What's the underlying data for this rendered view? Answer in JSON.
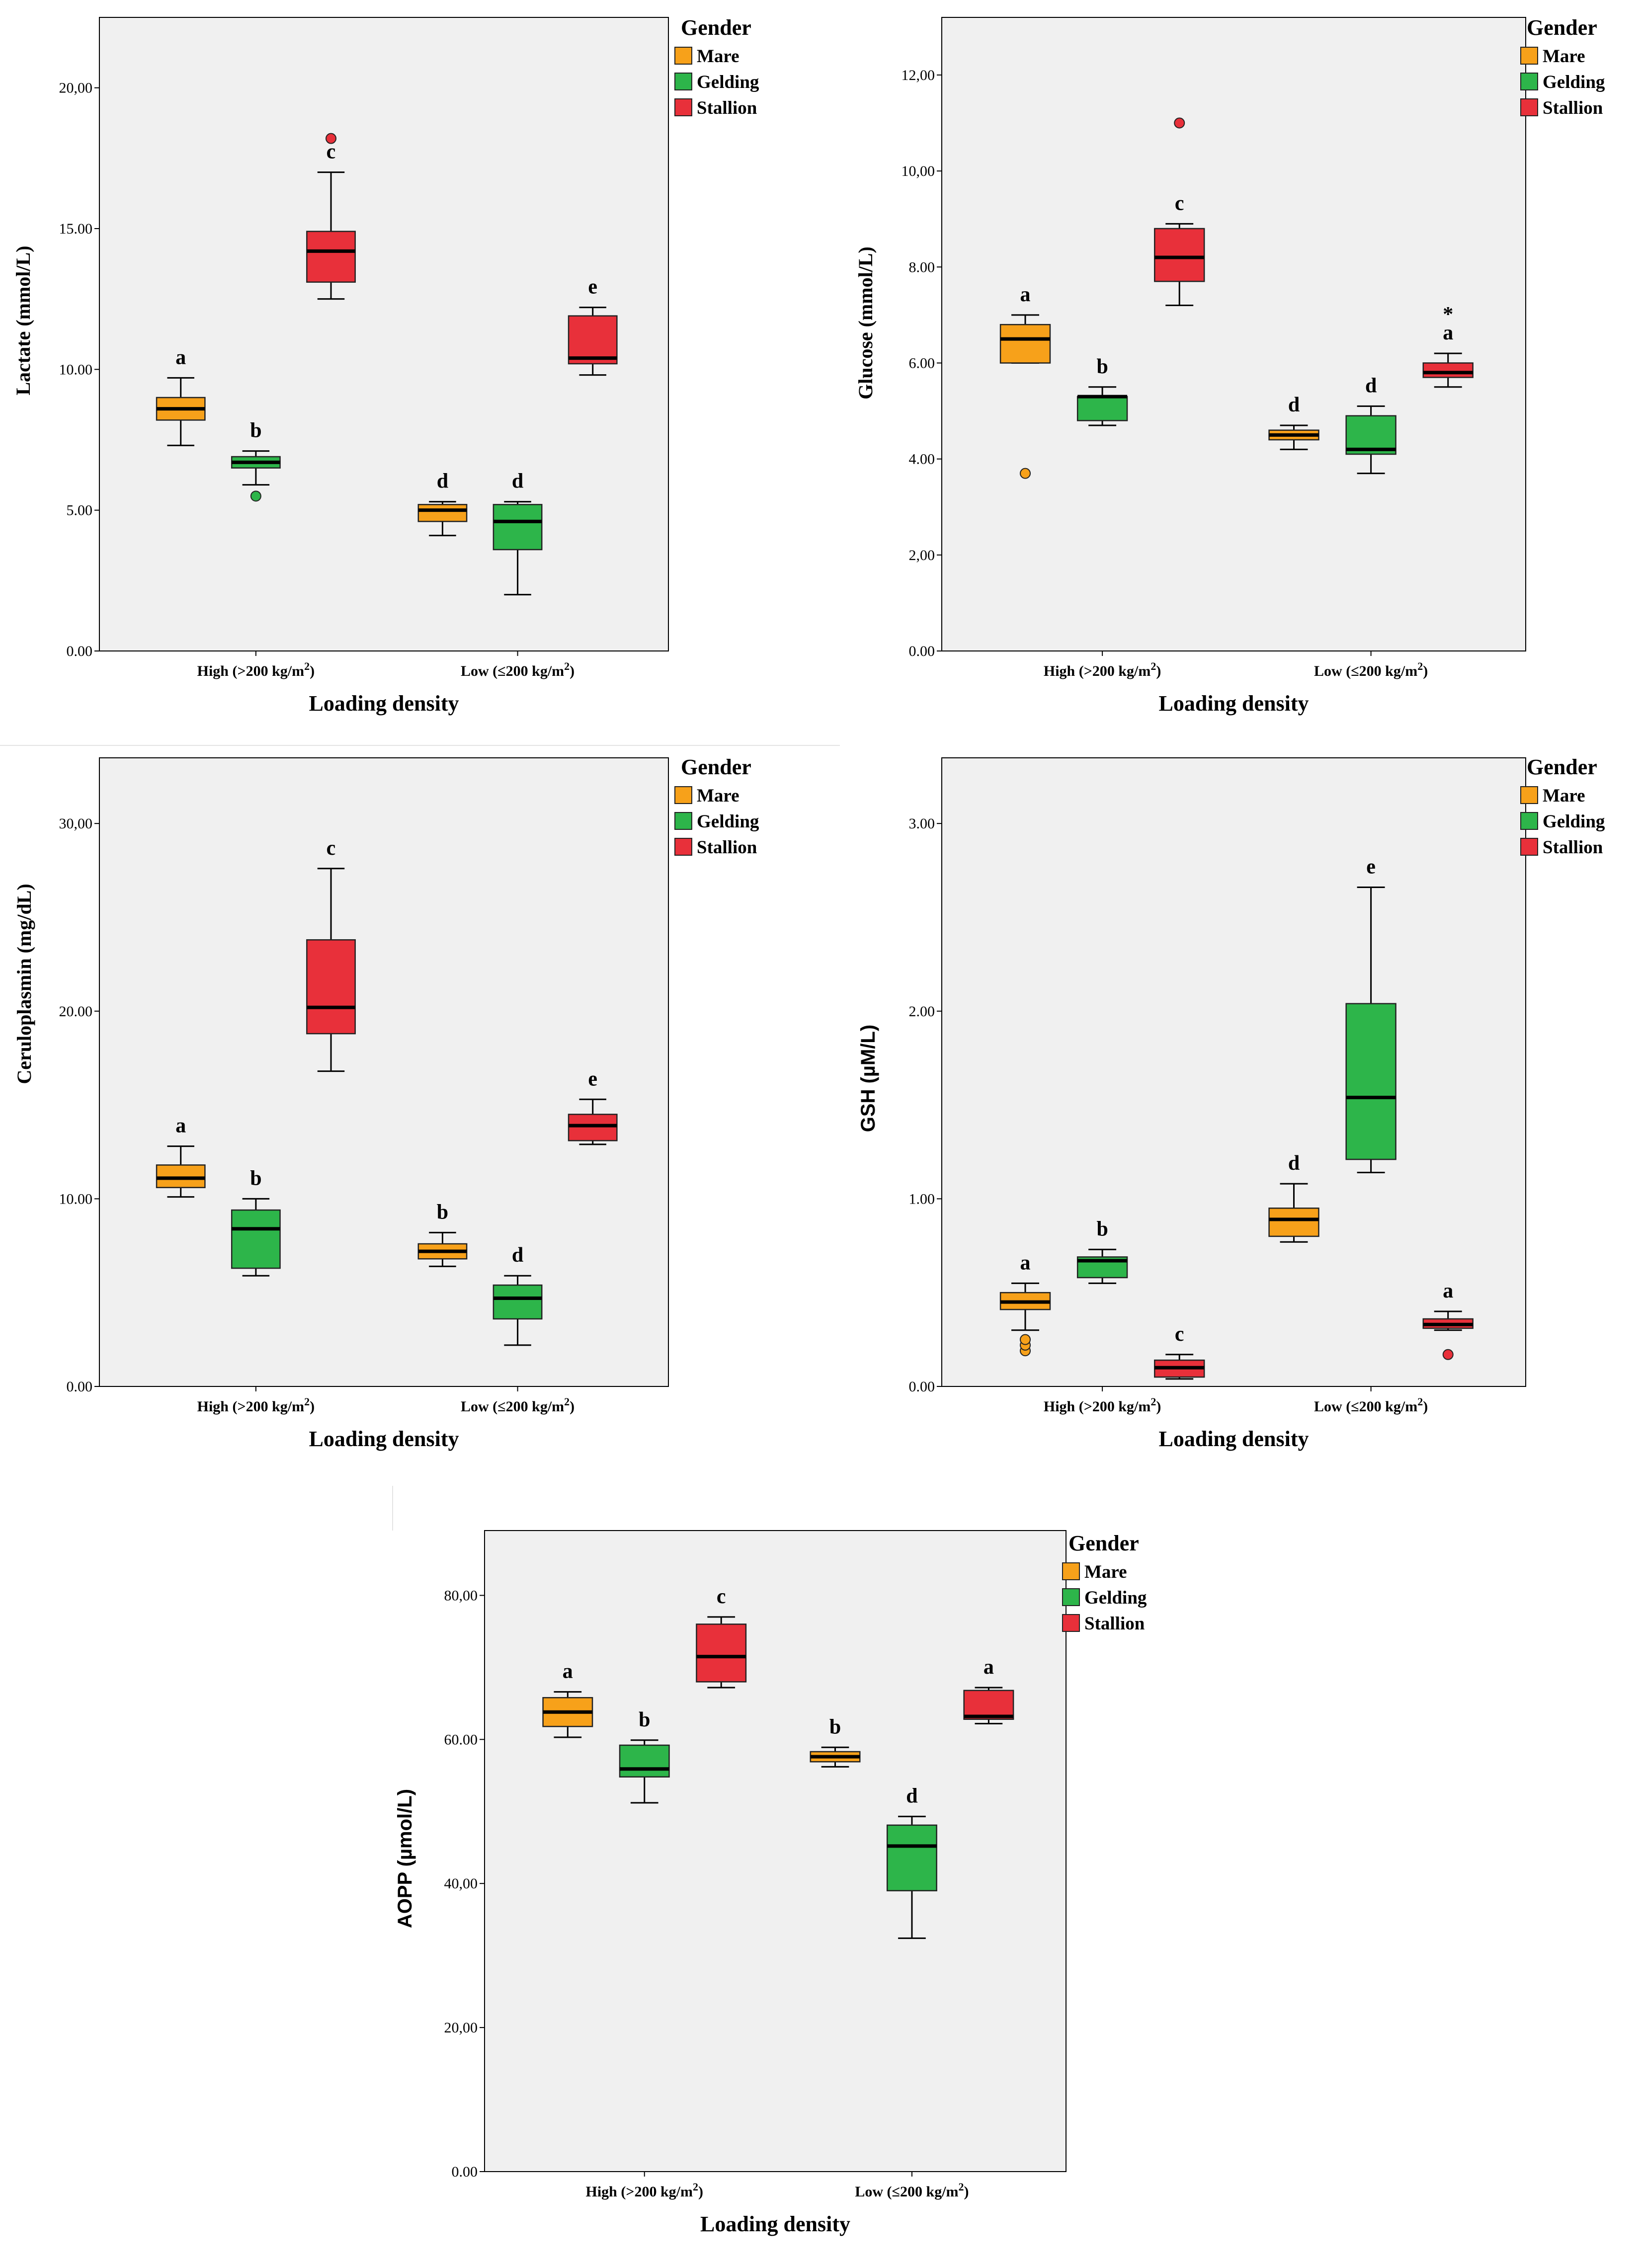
{
  "colors": {
    "Mare": "#F7A11A",
    "Gelding": "#2DB54A",
    "Stallion": "#E8303A",
    "plot_bg": "#F0F0F0",
    "outlier_star": "#E8303A"
  },
  "legend": {
    "title": "Gender",
    "items": [
      "Mare",
      "Gelding",
      "Stallion"
    ]
  },
  "chart_data": [
    {
      "id": "lactate",
      "type": "box",
      "ylabel": "Lactate (mmol/L)",
      "xlabel": "Loading density",
      "categories": [
        "High (>200 kg/m2)",
        "Low (≤200 kg/m2)"
      ],
      "ylim": [
        0,
        22.5
      ],
      "yticks": [
        0,
        5,
        10,
        15,
        20
      ],
      "ytick_labels": [
        "0.00",
        "5.00",
        "10.00",
        "15.00",
        "20,00"
      ],
      "boxes": [
        {
          "category": 0,
          "group": "Mare",
          "min": 7.3,
          "q1": 8.2,
          "median": 8.6,
          "q3": 9.0,
          "max": 9.7,
          "label": "a",
          "outliers": []
        },
        {
          "category": 0,
          "group": "Gelding",
          "min": 5.9,
          "q1": 6.5,
          "median": 6.7,
          "q3": 6.9,
          "max": 7.1,
          "label": "b",
          "outliers": [
            5.5
          ]
        },
        {
          "category": 0,
          "group": "Stallion",
          "min": 12.5,
          "q1": 13.1,
          "median": 14.2,
          "q3": 14.9,
          "max": 17.0,
          "label": "c",
          "outliers": [
            18.2
          ]
        },
        {
          "category": 1,
          "group": "Mare",
          "min": 4.1,
          "q1": 4.6,
          "median": 5.0,
          "q3": 5.2,
          "max": 5.3,
          "label": "d",
          "outliers": []
        },
        {
          "category": 1,
          "group": "Gelding",
          "min": 2.0,
          "q1": 3.6,
          "median": 4.6,
          "q3": 5.2,
          "max": 5.3,
          "label": "d",
          "outliers": []
        },
        {
          "category": 1,
          "group": "Stallion",
          "min": 9.8,
          "q1": 10.2,
          "median": 10.4,
          "q3": 11.9,
          "max": 12.2,
          "label": "e",
          "outliers": []
        }
      ]
    },
    {
      "id": "glucose",
      "type": "box",
      "ylabel": "Glucose (mmol/L)",
      "xlabel": "Loading density",
      "categories": [
        "High (>200 kg/m2)",
        "Low (≤200 kg/m2)"
      ],
      "ylim": [
        0,
        13.2
      ],
      "yticks": [
        0,
        2,
        4,
        6,
        8,
        10,
        12
      ],
      "ytick_labels": [
        "0.00",
        "2,00",
        "4.00",
        "6.00",
        "8.00",
        "10,00",
        "12,00"
      ],
      "boxes": [
        {
          "category": 0,
          "group": "Mare",
          "min": 6.0,
          "q1": 6.0,
          "median": 6.5,
          "q3": 6.8,
          "max": 7.0,
          "label": "a",
          "outliers": [
            3.7
          ]
        },
        {
          "category": 0,
          "group": "Gelding",
          "min": 4.7,
          "q1": 4.8,
          "median": 5.3,
          "q3": 5.3,
          "max": 5.5,
          "label": "b",
          "outliers": []
        },
        {
          "category": 0,
          "group": "Stallion",
          "min": 7.2,
          "q1": 7.7,
          "median": 8.2,
          "q3": 8.8,
          "max": 8.9,
          "label": "c",
          "outliers": [
            11.0
          ]
        },
        {
          "category": 1,
          "group": "Mare",
          "min": 4.2,
          "q1": 4.4,
          "median": 4.5,
          "q3": 4.6,
          "max": 4.7,
          "label": "d",
          "outliers": []
        },
        {
          "category": 1,
          "group": "Gelding",
          "min": 3.7,
          "q1": 4.1,
          "median": 4.2,
          "q3": 4.9,
          "max": 5.1,
          "label": "d",
          "outliers": []
        },
        {
          "category": 1,
          "group": "Stallion",
          "min": 5.5,
          "q1": 5.7,
          "median": 5.8,
          "q3": 6.0,
          "max": 6.2,
          "label": "a",
          "outliers": [],
          "extremes": [
            7.1
          ]
        }
      ]
    },
    {
      "id": "ceruloplasmin",
      "type": "box",
      "ylabel": "Ceruloplasmin (mg/dL)",
      "xlabel": "Loading density",
      "categories": [
        "High (>200 kg/m2)",
        "Low (≤200 kg/m2)"
      ],
      "ylim": [
        0,
        33.5
      ],
      "yticks": [
        0,
        10,
        20,
        30
      ],
      "ytick_labels": [
        "0.00",
        "10.00",
        "20.00",
        "30,00"
      ],
      "boxes": [
        {
          "category": 0,
          "group": "Mare",
          "min": 10.1,
          "q1": 10.6,
          "median": 11.1,
          "q3": 11.8,
          "max": 12.8,
          "label": "a",
          "outliers": []
        },
        {
          "category": 0,
          "group": "Gelding",
          "min": 5.9,
          "q1": 6.3,
          "median": 8.4,
          "q3": 9.4,
          "max": 10.0,
          "label": "b",
          "outliers": []
        },
        {
          "category": 0,
          "group": "Stallion",
          "min": 16.8,
          "q1": 18.8,
          "median": 20.2,
          "q3": 23.8,
          "max": 27.6,
          "label": "c",
          "outliers": []
        },
        {
          "category": 1,
          "group": "Mare",
          "min": 6.4,
          "q1": 6.8,
          "median": 7.2,
          "q3": 7.6,
          "max": 8.2,
          "label": "b",
          "outliers": []
        },
        {
          "category": 1,
          "group": "Gelding",
          "min": 2.2,
          "q1": 3.6,
          "median": 4.7,
          "q3": 5.4,
          "max": 5.9,
          "label": "d",
          "outliers": []
        },
        {
          "category": 1,
          "group": "Stallion",
          "min": 12.9,
          "q1": 13.1,
          "median": 13.9,
          "q3": 14.5,
          "max": 15.3,
          "label": "e",
          "outliers": []
        }
      ]
    },
    {
      "id": "gsh",
      "type": "box",
      "ylabel": "GSH (µM/L)",
      "xlabel": "Loading density",
      "categories": [
        "High (>200 kg/m2)",
        "Low (≤200 kg/m2)"
      ],
      "ylim": [
        0,
        3.35
      ],
      "yticks": [
        0,
        1,
        2,
        3
      ],
      "ytick_labels": [
        "0.00",
        "1.00",
        "2.00",
        "3.00"
      ],
      "boxes": [
        {
          "category": 0,
          "group": "Mare",
          "min": 0.3,
          "q1": 0.41,
          "median": 0.45,
          "q3": 0.5,
          "max": 0.55,
          "label": "a",
          "outliers": [
            0.19,
            0.22,
            0.25
          ]
        },
        {
          "category": 0,
          "group": "Gelding",
          "min": 0.55,
          "q1": 0.58,
          "median": 0.67,
          "q3": 0.69,
          "max": 0.73,
          "label": "b",
          "outliers": []
        },
        {
          "category": 0,
          "group": "Stallion",
          "min": 0.04,
          "q1": 0.05,
          "median": 0.1,
          "q3": 0.14,
          "max": 0.17,
          "label": "c",
          "outliers": []
        },
        {
          "category": 1,
          "group": "Mare",
          "min": 0.77,
          "q1": 0.8,
          "median": 0.89,
          "q3": 0.95,
          "max": 1.08,
          "label": "d",
          "outliers": []
        },
        {
          "category": 1,
          "group": "Gelding",
          "min": 1.14,
          "q1": 1.21,
          "median": 1.54,
          "q3": 2.04,
          "max": 2.66,
          "label": "e",
          "outliers": []
        },
        {
          "category": 1,
          "group": "Stallion",
          "min": 0.3,
          "q1": 0.31,
          "median": 0.33,
          "q3": 0.36,
          "max": 0.4,
          "label": "a",
          "outliers": [
            0.17
          ]
        }
      ]
    },
    {
      "id": "aopp",
      "type": "box",
      "ylabel": "AOPP (µmol/L)",
      "xlabel": "Loading density",
      "categories": [
        "High (>200 kg/m2)",
        "Low (≤200 kg/m2)"
      ],
      "ylim": [
        0,
        89
      ],
      "yticks": [
        0,
        20,
        40,
        60,
        80
      ],
      "ytick_labels": [
        "0.00",
        "20,00",
        "40,00",
        "60.00",
        "80,00"
      ],
      "boxes": [
        {
          "category": 0,
          "group": "Mare",
          "min": 60.3,
          "q1": 61.8,
          "median": 63.8,
          "q3": 65.8,
          "max": 66.6,
          "label": "a",
          "outliers": []
        },
        {
          "category": 0,
          "group": "Gelding",
          "min": 51.2,
          "q1": 54.8,
          "median": 55.9,
          "q3": 59.2,
          "max": 59.9,
          "label": "b",
          "outliers": []
        },
        {
          "category": 0,
          "group": "Stallion",
          "min": 67.2,
          "q1": 68.0,
          "median": 71.5,
          "q3": 76.0,
          "max": 77.0,
          "label": "c",
          "outliers": []
        },
        {
          "category": 1,
          "group": "Mare",
          "min": 56.2,
          "q1": 56.9,
          "median": 57.6,
          "q3": 58.3,
          "max": 58.9,
          "label": "b",
          "outliers": []
        },
        {
          "category": 1,
          "group": "Gelding",
          "min": 32.4,
          "q1": 39.0,
          "median": 45.2,
          "q3": 48.1,
          "max": 49.3,
          "label": "d",
          "outliers": []
        },
        {
          "category": 1,
          "group": "Stallion",
          "min": 62.2,
          "q1": 62.8,
          "median": 63.2,
          "q3": 66.8,
          "max": 67.2,
          "label": "a",
          "outliers": []
        }
      ]
    }
  ]
}
